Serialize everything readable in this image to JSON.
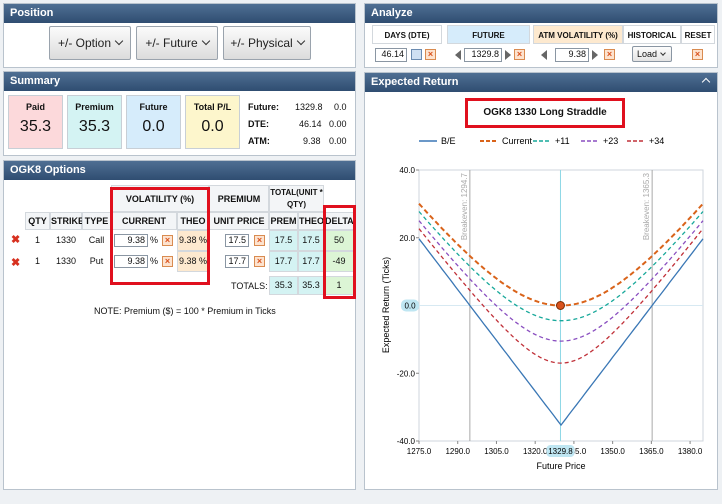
{
  "position": {
    "title": "Position",
    "buttons": [
      "+/- Option",
      "+/- Future",
      "+/- Physical"
    ]
  },
  "summary": {
    "title": "Summary",
    "paid_label": "Paid",
    "paid_value": "35.3",
    "premium_label": "Premium",
    "premium_value": "35.3",
    "future_label": "Future",
    "future_value": "0.0",
    "totalpl_label": "Total P/L",
    "totalpl_value": "0.0",
    "stats": [
      {
        "label": "Future:",
        "v1": "1329.8",
        "v2": "0.0"
      },
      {
        "label": "DTE:",
        "v1": "46.14",
        "v2": "0.00"
      },
      {
        "label": "ATM:",
        "v1": "9.38",
        "v2": "0.00"
      }
    ]
  },
  "options": {
    "title": "OGK8 Options",
    "headers": {
      "qty": "QTY",
      "strike": "STRIKE",
      "type": "TYPE",
      "volatility": "VOLATILITY (%)",
      "current": "CURRENT",
      "theo": "THEO",
      "premium": "PREMIUM",
      "unit_price": "UNIT PRICE",
      "total": "TOTAL(UNIT * QTY)",
      "prem": "PREM",
      "theo2": "THEO",
      "delta": "DELTA"
    },
    "rows": [
      {
        "qty": "1",
        "strike": "1330",
        "type": "Call",
        "vol": "9.38",
        "pct": "%",
        "theo": "9.38 %",
        "unit_price": "17.5",
        "prem": "17.5",
        "theo2": "17.5",
        "delta": "50"
      },
      {
        "qty": "1",
        "strike": "1330",
        "type": "Put",
        "vol": "9.38",
        "pct": "%",
        "theo": "9.38 %",
        "unit_price": "17.7",
        "prem": "17.7",
        "theo2": "17.7",
        "delta": "-49"
      }
    ],
    "totals_label": "TOTALS:",
    "total_prem": "35.3",
    "total_theo": "35.3",
    "total_delta": "1",
    "note": "NOTE: Premium ($) = 100 * Premium in Ticks"
  },
  "analyze": {
    "title": "Analyze",
    "days_label": "DAYS (DTE)",
    "days_value": "46.14",
    "future_label": "FUTURE",
    "future_value": "1329.8",
    "atmvol_label": "ATM VOLATILITY (%)",
    "atmvol_value": "9.38",
    "historical_label": "HISTORICAL",
    "load_label": "Load",
    "reset_label": "RESET"
  },
  "expected": {
    "title": "Expected Return",
    "chart_title": "OGK8 1330 Long Straddle"
  },
  "chart_data": {
    "type": "line",
    "title": "OGK8 1330 Long Straddle",
    "xlabel": "Future Price",
    "ylabel": "Expected Return (Ticks)",
    "xlim": [
      1275,
      1385
    ],
    "ylim": [
      -40,
      40
    ],
    "xticks": [
      "1275.0",
      "1290.0",
      "1305.0",
      "1320.0",
      "1335.0",
      "1350.0",
      "1365.0",
      "1380.0"
    ],
    "yticks": [
      "40.0",
      "20.0",
      "0.0",
      "-20.0",
      "-40.0"
    ],
    "strike": 1330,
    "premium": 35.3,
    "current_future": 1329.8,
    "current_future_label": "1329.8",
    "breakeven_low": 1294.7,
    "breakeven_high": 1365.3,
    "breakeven_low_label": "Breakeven: 1294.7",
    "breakeven_high_label": "Breakeven: 1365.3",
    "zero_label": "0.0",
    "series": [
      {
        "name": "B/E",
        "color": "#3a77b5",
        "style": "solid",
        "min": -35.3
      },
      {
        "name": "Current",
        "color": "#d9631a",
        "style": "dash",
        "min": 0.0
      },
      {
        "name": "+11",
        "color": "#17a89a",
        "style": "dash",
        "min": -4.5
      },
      {
        "name": "+23",
        "color": "#8a4fc0",
        "style": "dash",
        "min": -10.5
      },
      {
        "name": "+34",
        "color": "#c03038",
        "style": "dash",
        "min": -17.0
      }
    ]
  }
}
